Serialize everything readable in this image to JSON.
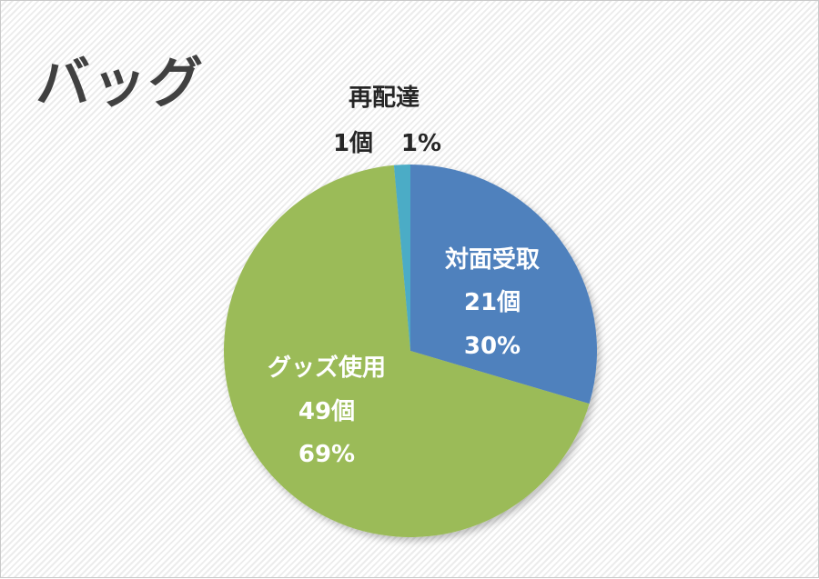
{
  "chart_data": {
    "type": "pie",
    "title": "バッグ",
    "slices": [
      {
        "name": "対面受取",
        "count_label": "21個",
        "percent_label": "30%",
        "value": 21,
        "color": "#4f81bd"
      },
      {
        "name": "グッズ使用",
        "count_label": "49個",
        "percent_label": "69%",
        "value": 49,
        "color": "#9bbb59"
      },
      {
        "name": "再配達",
        "count_label": "1個",
        "percent_label": "1%",
        "value": 1,
        "color": "#4bacc6"
      }
    ]
  }
}
